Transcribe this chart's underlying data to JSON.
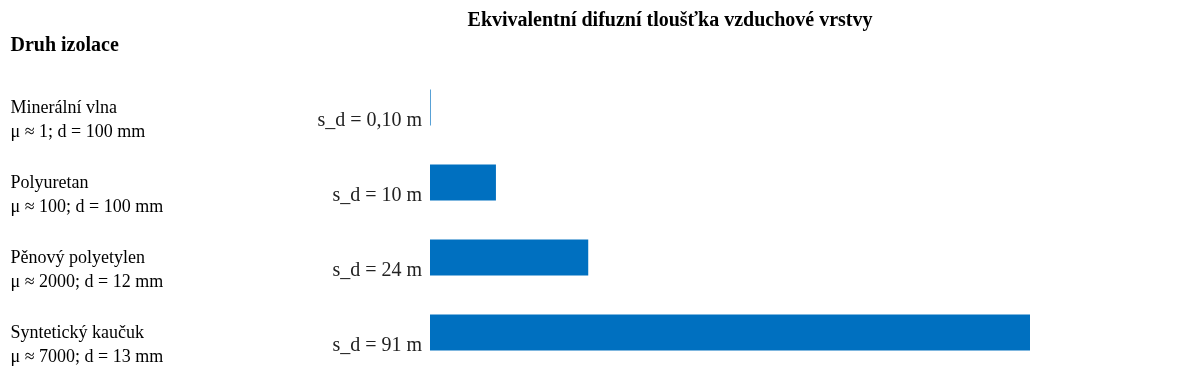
{
  "chart_data": {
    "type": "bar",
    "orientation": "horizontal",
    "title": "Ekvivalentní difuzní tloušťka vzduchové vrstvy",
    "ylabel": "Druh izolace",
    "categories": [
      "Minerální vlna\nμ ≈ 1; d = 100 mm",
      "Polyuretan\nμ ≈ 100; d = 100 mm",
      "Pěnový polyetylen\nμ ≈ 2000; d = 12 mm",
      "Syntetický kaučuk\nμ ≈ 7000; d = 13 mm"
    ],
    "values": [
      0.1,
      10,
      24,
      91
    ],
    "value_labels": [
      "s_d = 0,10 m",
      "s_d = 10 m",
      "s_d = 24 m",
      "s_d = 91 m"
    ],
    "color": "#0070c0",
    "tick_labels": "y",
    "grid": false
  }
}
